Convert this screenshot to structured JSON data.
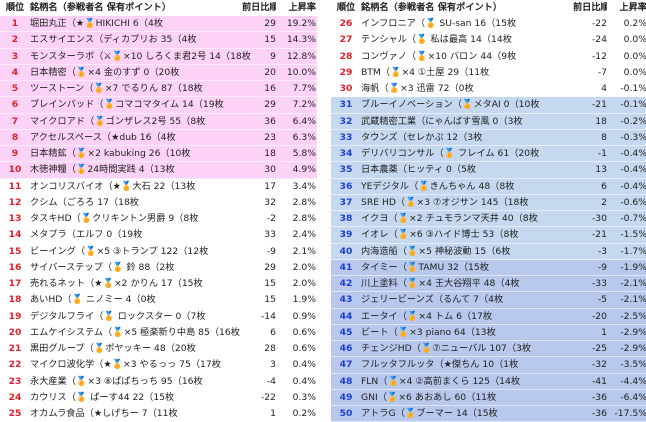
{
  "headers": {
    "rank": "順位",
    "name": "銘柄名（参戦者名 保有ポイント）",
    "prev": "前日比順位",
    "rate": "上昇率"
  },
  "colors": {
    "pink": "#fcd3f6",
    "white": "#ffffff",
    "blue_light": "#c5d8f0",
    "blue_mid": "#b7c8ec",
    "rank_red": "#e0202a",
    "rank_blue": "#1f3fcf"
  },
  "left": [
    {
      "rank": "1",
      "name": "堀田丸正（★🏅HIKICHI 6（4枚",
      "prev": "29",
      "rate": "19.2%",
      "bg": "pink"
    },
    {
      "rank": "2",
      "name": "エスサイエンス（ディカプリお 35（4枚",
      "prev": "15",
      "rate": "14.3%",
      "bg": "pink"
    },
    {
      "rank": "3",
      "name": "モンスターラボ（⚔🏅×10 しろくま君2号 14（18枚",
      "prev": "9",
      "rate": "12.8%",
      "bg": "pink"
    },
    {
      "rank": "4",
      "name": "日本精密（🏅×4 金のすず 0（20枚",
      "prev": "20",
      "rate": "10.0%",
      "bg": "pink"
    },
    {
      "rank": "5",
      "name": "ツーストーン（🏅×7 でるりん 87（18枚",
      "prev": "16",
      "rate": "7.7%",
      "bg": "pink"
    },
    {
      "rank": "6",
      "name": "ブレインパッド（🏅コマコマタイム 14（19枚",
      "prev": "29",
      "rate": "7.2%",
      "bg": "pink"
    },
    {
      "rank": "7",
      "name": "マイクロアド（🏅ゴンザレス2号 55（8枚",
      "prev": "36",
      "rate": "6.4%",
      "bg": "pink"
    },
    {
      "rank": "8",
      "name": "アクセルスペース（★dub 16（4枚",
      "prev": "23",
      "rate": "6.3%",
      "bg": "pink"
    },
    {
      "rank": "9",
      "name": "日本精鉱（🏅×2 kabuking 26（10枚",
      "prev": "18",
      "rate": "5.8%",
      "bg": "pink"
    },
    {
      "rank": "10",
      "name": "木徳神糧（🏅24時間実践 4（13枚",
      "prev": "30",
      "rate": "4.9%",
      "bg": "pink"
    },
    {
      "rank": "11",
      "name": "オンコリスバイオ（★🏅大石 22（13枚",
      "prev": "17",
      "rate": "3.4%",
      "bg": "white"
    },
    {
      "rank": "12",
      "name": "クシム（ごろろ 17（18枚",
      "prev": "32",
      "rate": "2.8%",
      "bg": "white"
    },
    {
      "rank": "13",
      "name": "タスキHD（🏅クリキントン男爵 9（8枚",
      "prev": "-2",
      "rate": "2.8%",
      "bg": "white"
    },
    {
      "rank": "14",
      "name": "メタプラ（エルフ 0（19枚",
      "prev": "33",
      "rate": "2.4%",
      "bg": "white"
    },
    {
      "rank": "15",
      "name": "ビーイング（🏅×5 ③トランプ 122（12枚",
      "prev": "-9",
      "rate": "2.1%",
      "bg": "white"
    },
    {
      "rank": "16",
      "name": "サイバーステップ（🏅 鈴 88（2枚",
      "prev": "29",
      "rate": "2.0%",
      "bg": "white"
    },
    {
      "rank": "17",
      "name": "売れるネット（★🏅×2 かりん 17（15枚",
      "prev": "15",
      "rate": "2.0%",
      "bg": "white"
    },
    {
      "rank": "18",
      "name": "あいHD（🏅 ニノミー 4（0枚",
      "prev": "15",
      "rate": "1.9%",
      "bg": "white"
    },
    {
      "rank": "19",
      "name": "デジタルフライ（🏅 ロックスター 0（7枚",
      "prev": "-14",
      "rate": "0.9%",
      "bg": "white"
    },
    {
      "rank": "20",
      "name": "エムケイシステム（🏅×5 極楽新り中島 85（16枚",
      "prev": "6",
      "rate": "0.6%",
      "bg": "white"
    },
    {
      "rank": "21",
      "name": "黒田グループ（🏅ポヤッキー 48（20枚",
      "prev": "28",
      "rate": "0.6%",
      "bg": "white"
    },
    {
      "rank": "22",
      "name": "マイクロ波化学（★🏅×3 やるっっ 75（17枚",
      "prev": "3",
      "rate": "0.4%",
      "bg": "white"
    },
    {
      "rank": "23",
      "name": "永大産業（🏅×3 ⑧ぱぱちっち 95（16枚",
      "prev": "-4",
      "rate": "0.4%",
      "bg": "white"
    },
    {
      "rank": "24",
      "name": "カウリス（🏅 ぱーす44 22（15枚",
      "prev": "-22",
      "rate": "0.3%",
      "bg": "white"
    },
    {
      "rank": "25",
      "name": "オカムラ食品（★しげちー 7（11枚",
      "prev": "1",
      "rate": "0.2%",
      "bg": "white"
    }
  ],
  "right": [
    {
      "rank": "26",
      "name": "インフロニア（🏅 SU-san 16（15枚",
      "prev": "-22",
      "rate": "0.2%",
      "bg": "white"
    },
    {
      "rank": "27",
      "name": "テンシャル（🏅 私は最高 14（14枚",
      "prev": "-24",
      "rate": "0.0%",
      "bg": "white"
    },
    {
      "rank": "28",
      "name": "コンヴァノ（🏅×10 バロン 44（9枚",
      "prev": "-12",
      "rate": "0.0%",
      "bg": "white"
    },
    {
      "rank": "29",
      "name": "BTM（🏅×4 ①土屋 29（11枚",
      "prev": "-7",
      "rate": "0.0%",
      "bg": "white"
    },
    {
      "rank": "30",
      "name": "海帆（🏅×3 迅雷 72（0枚",
      "prev": "4",
      "rate": "-0.1%",
      "bg": "white"
    },
    {
      "rank": "31",
      "name": "ブルーイノベーション（🏅メタAI 0（10枚",
      "prev": "-21",
      "rate": "-0.1%",
      "bg": "blue_light"
    },
    {
      "rank": "32",
      "name": "武蔵精密工業（にゃんばす雪風 0（3枚",
      "prev": "18",
      "rate": "-0.2%",
      "bg": "blue_light"
    },
    {
      "rank": "33",
      "name": "タウンズ（セレかぷ 12（3枚",
      "prev": "8",
      "rate": "-0.3%",
      "bg": "blue_light"
    },
    {
      "rank": "34",
      "name": "デリバリコンサル（🏅 フレイム 61（20枚",
      "prev": "-1",
      "rate": "-0.4%",
      "bg": "blue_light"
    },
    {
      "rank": "35",
      "name": "日本農薬（ヒッティ 0（5枚",
      "prev": "13",
      "rate": "-0.4%",
      "bg": "blue_light"
    },
    {
      "rank": "36",
      "name": "YEデジタル（🏅きんちゃん 48（8枚",
      "prev": "6",
      "rate": "-0.4%",
      "bg": "blue_light"
    },
    {
      "rank": "37",
      "name": "SRE HD（🏅×3 ⑦オジサン 145（18枚",
      "prev": "2",
      "rate": "-0.6%",
      "bg": "blue_light"
    },
    {
      "rank": "38",
      "name": "イクヨ（🏅×2 チュモランマ天井 40（8枚",
      "prev": "-30",
      "rate": "-0.7%",
      "bg": "blue_light"
    },
    {
      "rank": "39",
      "name": "イオレ（🏅×6 ③ハイド博士 53（8枚",
      "prev": "-21",
      "rate": "-1.5%",
      "bg": "blue_light"
    },
    {
      "rank": "40",
      "name": "内海造船（🏅×5 神秘波動 15（6枚",
      "prev": "-3",
      "rate": "-1.7%",
      "bg": "blue_light"
    },
    {
      "rank": "41",
      "name": "タイミー（🏅TAMU 32（15枚",
      "prev": "-9",
      "rate": "-1.9%",
      "bg": "blue_mid"
    },
    {
      "rank": "42",
      "name": "川上塗料（🏅×4 王大谷翔平 48（4枚",
      "prev": "-33",
      "rate": "-2.1%",
      "bg": "blue_mid"
    },
    {
      "rank": "43",
      "name": "ジェリービーンズ（るんて 7（4枚",
      "prev": "-5",
      "rate": "-2.1%",
      "bg": "blue_mid"
    },
    {
      "rank": "44",
      "name": "エータイ（🏅×4 トム 6（17枚",
      "prev": "-20",
      "rate": "-2.5%",
      "bg": "blue_mid"
    },
    {
      "rank": "45",
      "name": "ビート（🏅×3 piano 64（13枚",
      "prev": "1",
      "rate": "-2.9%",
      "bg": "blue_mid"
    },
    {
      "rank": "46",
      "name": "チェンジHD（🏅⑦ニューバル 107（3枚",
      "prev": "-25",
      "rate": "-2.9%",
      "bg": "blue_mid"
    },
    {
      "rank": "47",
      "name": "フルッタフルッタ（★傑ちん 10（1枚",
      "prev": "-32",
      "rate": "-3.5%",
      "bg": "blue_mid"
    },
    {
      "rank": "48",
      "name": "FLN（🏅×4 ②高前まくら 125（14枚",
      "prev": "-41",
      "rate": "-4.4%",
      "bg": "blue_mid"
    },
    {
      "rank": "49",
      "name": "GNI（🏅×6 あおあし 60（11枚",
      "prev": "-36",
      "rate": "-6.4%",
      "bg": "blue_mid"
    },
    {
      "rank": "50",
      "name": "アトラG（🏅ブーマー 14（15枚",
      "prev": "-36",
      "rate": "-17.5%",
      "bg": "blue_mid"
    }
  ]
}
